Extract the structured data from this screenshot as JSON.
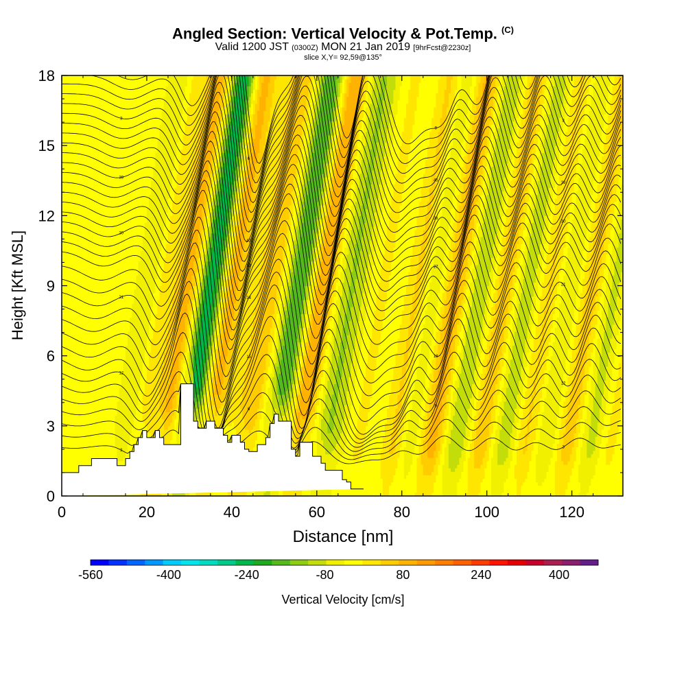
{
  "chart_data": {
    "type": "heatmap",
    "title": "Angled Section: Vertical Velocity & Pot.Temp.",
    "title_units": "(C)",
    "subtitle_valid": "Valid 1200 JST",
    "subtitle_utc": "(0300Z)",
    "subtitle_date": "MON 21 Jan 2019",
    "subtitle_fcst": "[9hrFcst@2230z]",
    "slice_label": "slice X,Y= 92,59@135°",
    "xlabel": "Distance [nm]",
    "ylabel": "Height [Kft MSL]",
    "xlim": [
      0,
      132
    ],
    "ylim": [
      0,
      18
    ],
    "x_ticks": [
      "0",
      "20",
      "40",
      "60",
      "80",
      "100",
      "120"
    ],
    "y_ticks": [
      "0",
      "3",
      "6",
      "9",
      "12",
      "15",
      "18"
    ],
    "colorbar": {
      "label": "Vertical Velocity [cm/s]",
      "min": -560,
      "max": 480,
      "step": 40,
      "tick_labels": [
        "-560",
        "-400",
        "-240",
        "-80",
        "80",
        "240",
        "400"
      ],
      "colors": [
        "#0000ff",
        "#0033ff",
        "#0066ff",
        "#0099ff",
        "#00ccff",
        "#00e5ee",
        "#00dcc0",
        "#00cc8a",
        "#00b84a",
        "#1eaa1e",
        "#55b91e",
        "#8ccc14",
        "#c3dd0a",
        "#f0f000",
        "#ffff00",
        "#ffe600",
        "#ffcc00",
        "#ffb300",
        "#ff9a00",
        "#ff7f00",
        "#ff6000",
        "#ff3c00",
        "#ff1400",
        "#e60000",
        "#c8002d",
        "#aa1e50",
        "#8c1e6e",
        "#641e8c"
      ]
    },
    "terrain_profile": {
      "distance_nm": [
        0,
        4,
        4,
        7,
        7,
        13,
        13,
        15,
        15,
        16,
        16,
        17,
        17,
        18,
        18,
        19,
        19,
        20,
        20,
        22,
        22,
        23,
        23,
        24,
        24,
        28,
        28,
        31,
        31,
        32,
        32,
        34,
        34,
        36,
        36,
        38,
        38,
        39,
        39,
        40,
        40,
        42,
        42,
        43,
        43,
        44,
        44,
        46,
        46,
        48,
        48,
        49,
        49,
        50,
        50,
        51,
        51,
        54,
        54,
        55,
        55,
        56,
        56,
        59,
        59,
        61,
        61,
        62,
        62,
        66,
        66,
        67,
        67,
        68,
        68,
        71,
        71,
        132
      ],
      "height_kft": [
        1.0,
        1.0,
        1.3,
        1.3,
        1.6,
        1.6,
        1.3,
        1.3,
        1.6,
        1.6,
        1.9,
        1.9,
        2.2,
        2.2,
        2.5,
        2.5,
        2.8,
        2.8,
        2.5,
        2.5,
        2.8,
        2.8,
        2.5,
        2.5,
        2.2,
        2.2,
        4.8,
        4.8,
        3.2,
        3.2,
        2.9,
        2.9,
        3.2,
        3.2,
        2.9,
        2.9,
        2.6,
        2.6,
        2.3,
        2.3,
        2.6,
        2.6,
        2.3,
        2.3,
        2.0,
        2.0,
        1.9,
        1.9,
        2.2,
        2.2,
        2.5,
        2.5,
        3.1,
        3.1,
        3.5,
        3.5,
        3.2,
        3.2,
        2.0,
        2.0,
        1.7,
        1.7,
        2.3,
        2.3,
        1.7,
        1.7,
        1.4,
        1.4,
        1.1,
        1.1,
        0.7,
        0.7,
        0.6,
        0.6,
        0.3,
        0.3,
        0.3
      ]
    },
    "waves": [
      {
        "x0_nm": 6,
        "amp": 1.2,
        "half_width_nm": 6
      },
      {
        "x0_nm": 20,
        "amp": 3.2,
        "half_width_nm": 3.6
      },
      {
        "x0_nm": 26.5,
        "amp": 2.0,
        "half_width_nm": 3.6
      },
      {
        "x0_nm": 30,
        "amp": -7.2,
        "half_width_nm": 4.4
      },
      {
        "x0_nm": 35,
        "amp": 9.2,
        "half_width_nm": 4.0
      },
      {
        "x0_nm": 43,
        "amp": 2.0,
        "half_width_nm": 4.5
      },
      {
        "x0_nm": 50.5,
        "amp": -5.6,
        "half_width_nm": 5.2
      },
      {
        "x0_nm": 56,
        "amp": 7.8,
        "half_width_nm": 4.2
      },
      {
        "x0_nm": 62,
        "amp": -2.6,
        "half_width_nm": 4.2
      },
      {
        "x0_nm": 70,
        "amp": 5.8,
        "half_width_nm": 5.5
      },
      {
        "x0_nm": 79.5,
        "amp": 4.6,
        "half_width_nm": 6.0
      },
      {
        "x0_nm": 83,
        "amp": -1.8,
        "half_width_nm": 3.0
      },
      {
        "x0_nm": 88.5,
        "amp": 4.0,
        "half_width_nm": 4.0
      },
      {
        "x0_nm": 92.5,
        "amp": -4.4,
        "half_width_nm": 4.5
      },
      {
        "x0_nm": 99.5,
        "amp": 3.4,
        "half_width_nm": 4.5
      },
      {
        "x0_nm": 104,
        "amp": -3.6,
        "half_width_nm": 4.2
      },
      {
        "x0_nm": 110,
        "amp": 2.6,
        "half_width_nm": 4.0
      },
      {
        "x0_nm": 114.5,
        "amp": -1.8,
        "half_width_nm": 3.6
      },
      {
        "x0_nm": 120,
        "amp": 2.4,
        "half_width_nm": 4.2
      },
      {
        "x0_nm": 124.5,
        "amp": -2.8,
        "half_width_nm": 3.8
      },
      {
        "x0_nm": 130,
        "amp": 1.4,
        "half_width_nm": 3.0
      }
    ],
    "tilt_nm_per_kft": 0.85,
    "isentrope_labels": [
      "3",
      "6",
      "9",
      "12",
      "15",
      "18",
      "21",
      "24",
      "27",
      "30",
      "33",
      "36",
      "39",
      "42",
      "45"
    ]
  }
}
